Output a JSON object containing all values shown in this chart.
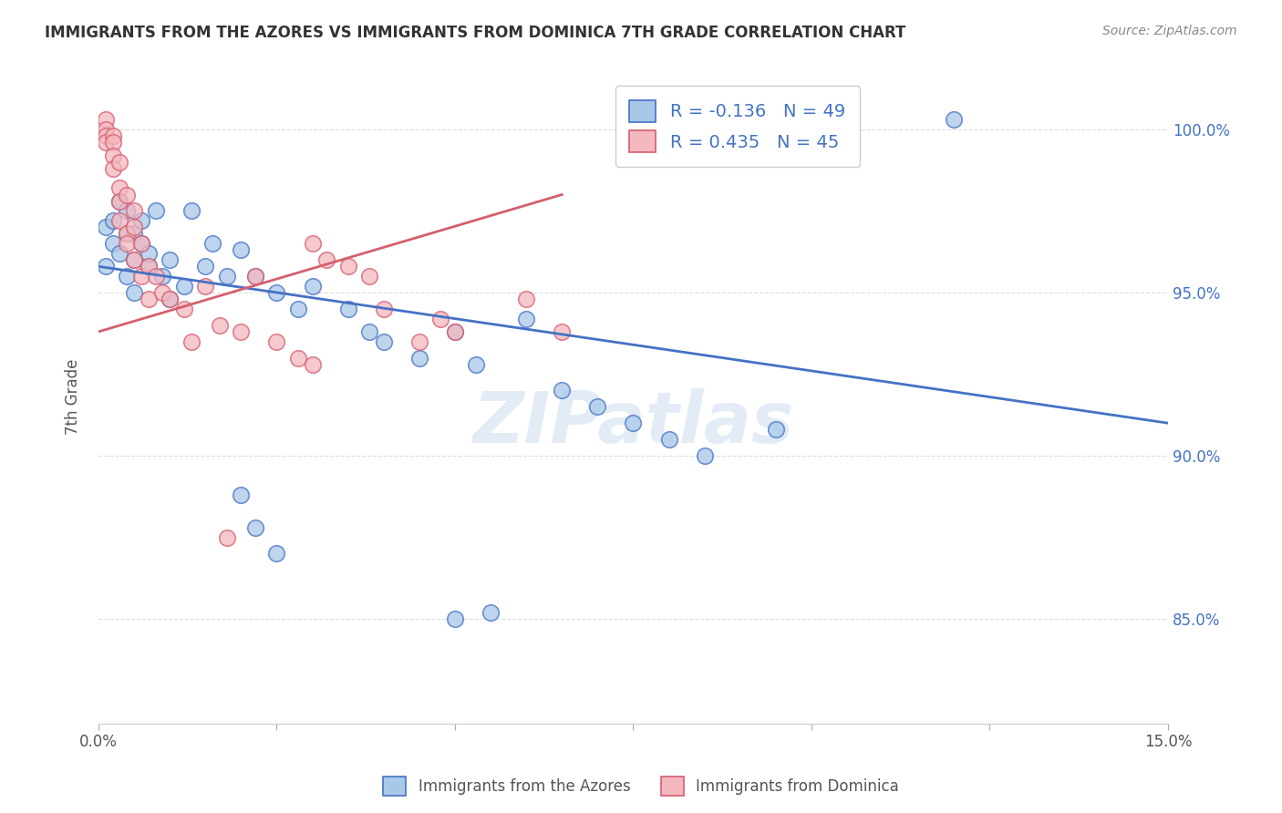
{
  "title": "IMMIGRANTS FROM THE AZORES VS IMMIGRANTS FROM DOMINICA 7TH GRADE CORRELATION CHART",
  "source": "Source: ZipAtlas.com",
  "ylabel": "7th Grade",
  "ylabel_ticks": [
    "85.0%",
    "90.0%",
    "95.0%",
    "100.0%"
  ],
  "ylabel_tick_vals": [
    0.85,
    0.9,
    0.95,
    1.0
  ],
  "xlim": [
    0.0,
    0.15
  ],
  "ylim": [
    0.818,
    1.018
  ],
  "legend_blue_r": "-0.136",
  "legend_blue_n": "49",
  "legend_pink_r": "0.435",
  "legend_pink_n": "45",
  "watermark": "ZIPatlas",
  "blue_color": "#a8c8e8",
  "pink_color": "#f4b8c0",
  "blue_line_color": "#4472c4",
  "pink_line_color": "#d45f6e",
  "blue_scatter": [
    [
      0.001,
      0.97
    ],
    [
      0.001,
      0.958
    ],
    [
      0.002,
      0.965
    ],
    [
      0.002,
      0.972
    ],
    [
      0.003,
      0.978
    ],
    [
      0.003,
      0.962
    ],
    [
      0.004,
      0.968
    ],
    [
      0.004,
      0.955
    ],
    [
      0.004,
      0.975
    ],
    [
      0.005,
      0.96
    ],
    [
      0.005,
      0.968
    ],
    [
      0.005,
      0.95
    ],
    [
      0.006,
      0.972
    ],
    [
      0.006,
      0.965
    ],
    [
      0.007,
      0.958
    ],
    [
      0.007,
      0.962
    ],
    [
      0.008,
      0.975
    ],
    [
      0.009,
      0.955
    ],
    [
      0.01,
      0.948
    ],
    [
      0.01,
      0.96
    ],
    [
      0.012,
      0.952
    ],
    [
      0.013,
      0.975
    ],
    [
      0.015,
      0.958
    ],
    [
      0.016,
      0.965
    ],
    [
      0.018,
      0.955
    ],
    [
      0.02,
      0.963
    ],
    [
      0.022,
      0.955
    ],
    [
      0.025,
      0.95
    ],
    [
      0.028,
      0.945
    ],
    [
      0.03,
      0.952
    ],
    [
      0.035,
      0.945
    ],
    [
      0.038,
      0.938
    ],
    [
      0.04,
      0.935
    ],
    [
      0.045,
      0.93
    ],
    [
      0.05,
      0.938
    ],
    [
      0.053,
      0.928
    ],
    [
      0.06,
      0.942
    ],
    [
      0.065,
      0.92
    ],
    [
      0.02,
      0.888
    ],
    [
      0.022,
      0.878
    ],
    [
      0.025,
      0.87
    ],
    [
      0.05,
      0.85
    ],
    [
      0.055,
      0.852
    ],
    [
      0.07,
      0.915
    ],
    [
      0.075,
      0.91
    ],
    [
      0.08,
      0.905
    ],
    [
      0.085,
      0.9
    ],
    [
      0.095,
      0.908
    ],
    [
      0.12,
      1.003
    ]
  ],
  "pink_scatter": [
    [
      0.001,
      1.003
    ],
    [
      0.001,
      1.0
    ],
    [
      0.001,
      0.998
    ],
    [
      0.001,
      0.996
    ],
    [
      0.002,
      0.998
    ],
    [
      0.002,
      0.996
    ],
    [
      0.002,
      0.992
    ],
    [
      0.002,
      0.988
    ],
    [
      0.003,
      0.99
    ],
    [
      0.003,
      0.982
    ],
    [
      0.003,
      0.978
    ],
    [
      0.003,
      0.972
    ],
    [
      0.004,
      0.98
    ],
    [
      0.004,
      0.968
    ],
    [
      0.004,
      0.965
    ],
    [
      0.005,
      0.975
    ],
    [
      0.005,
      0.97
    ],
    [
      0.005,
      0.96
    ],
    [
      0.006,
      0.965
    ],
    [
      0.006,
      0.955
    ],
    [
      0.007,
      0.958
    ],
    [
      0.007,
      0.948
    ],
    [
      0.008,
      0.955
    ],
    [
      0.009,
      0.95
    ],
    [
      0.01,
      0.948
    ],
    [
      0.012,
      0.945
    ],
    [
      0.013,
      0.935
    ],
    [
      0.015,
      0.952
    ],
    [
      0.017,
      0.94
    ],
    [
      0.02,
      0.938
    ],
    [
      0.022,
      0.955
    ],
    [
      0.025,
      0.935
    ],
    [
      0.028,
      0.93
    ],
    [
      0.03,
      0.928
    ],
    [
      0.03,
      0.965
    ],
    [
      0.032,
      0.96
    ],
    [
      0.035,
      0.958
    ],
    [
      0.038,
      0.955
    ],
    [
      0.04,
      0.945
    ],
    [
      0.045,
      0.935
    ],
    [
      0.048,
      0.942
    ],
    [
      0.05,
      0.938
    ],
    [
      0.018,
      0.875
    ],
    [
      0.06,
      0.948
    ],
    [
      0.065,
      0.938
    ]
  ],
  "blue_line_x": [
    0.0,
    0.15
  ],
  "blue_line_y": [
    0.958,
    0.91
  ],
  "pink_line_x": [
    0.0,
    0.065
  ],
  "pink_line_y": [
    0.938,
    0.98
  ]
}
